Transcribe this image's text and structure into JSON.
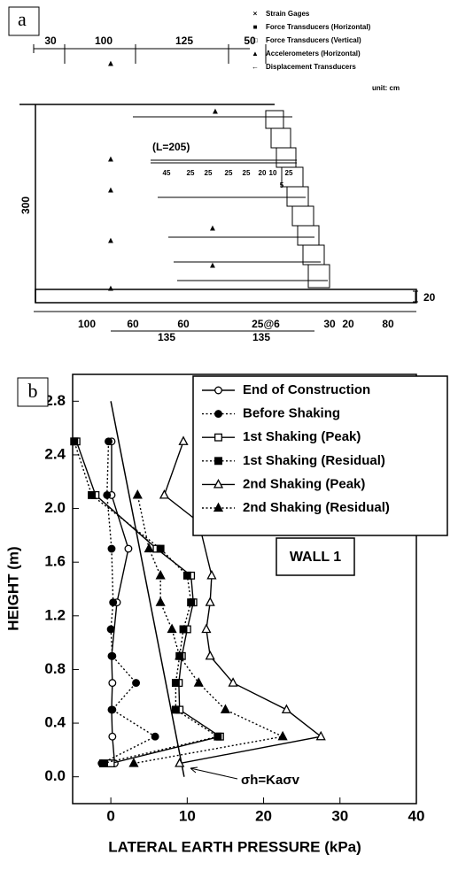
{
  "panel_a": {
    "label": "a",
    "legend": [
      "Strain Gages",
      "Force Transducers (Horizontal)",
      "Force Transducers (Vertical)",
      "Accelerometers (Horizontal)",
      "Displacement Transducers"
    ],
    "unit": "unit: cm",
    "top_dims": [
      "30",
      "100",
      "125",
      "50"
    ],
    "height": "300",
    "length": "(L=205)",
    "spacing": [
      "45",
      "25",
      "25",
      "25",
      "25",
      "20",
      "10",
      "25",
      "5"
    ],
    "base": "20",
    "bottom_dims": [
      "100",
      "60",
      "60",
      "25@6",
      "30",
      "20",
      "80"
    ],
    "lower_dims": [
      "135",
      "135"
    ]
  },
  "chart_data": {
    "type": "line",
    "label": "b",
    "x_label": "LATERAL EARTH PRESSURE (kPa)",
    "y_label": "HEIGHT (m)",
    "xlim": [
      -5,
      40
    ],
    "ylim": [
      -0.2,
      3.0
    ],
    "xticks": [
      0,
      10,
      20,
      30,
      40
    ],
    "yticks": [
      {
        "value": 0,
        "label": "0.0"
      },
      {
        "value": 0.4,
        "label": "0.4"
      },
      {
        "value": 0.8,
        "label": "0.8"
      },
      {
        "value": 1.2,
        "label": "1.2"
      },
      {
        "value": 1.6,
        "label": "1.6"
      },
      {
        "value": 2.0,
        "label": "2.0"
      },
      {
        "value": 2.4,
        "label": "2.4"
      },
      {
        "value": 2.8,
        "label": "2.8"
      }
    ],
    "series": [
      {
        "name": "End of Construction",
        "color": "#000000",
        "marker": "circle-open",
        "dash": "solid",
        "x": [
          0.5,
          0.2,
          0.1,
          0.2,
          0.1,
          0.8,
          2.3,
          0.1,
          0.1
        ],
        "y": [
          0.1,
          0.3,
          0.5,
          0.7,
          0.9,
          1.3,
          1.7,
          2.1,
          2.5
        ]
      },
      {
        "name": "Before Shaking",
        "color": "#000000",
        "marker": "circle-filled",
        "dash": "dotted",
        "x": [
          -1.2,
          5.8,
          0.2,
          3.3,
          0.2,
          0.0,
          0.3,
          0.1,
          -0.5,
          -0.3
        ],
        "y": [
          0.1,
          0.3,
          0.5,
          0.7,
          0.9,
          1.1,
          1.3,
          1.7,
          2.1,
          2.5
        ]
      },
      {
        "name": "1st Shaking (Peak)",
        "color": "#000000",
        "marker": "square-open",
        "dash": "solid",
        "x": [
          0.0,
          14.3,
          9.0,
          8.9,
          9.3,
          10.0,
          10.8,
          10.5,
          6.0,
          -2.0,
          -4.5
        ],
        "y": [
          0.1,
          0.3,
          0.5,
          0.7,
          0.9,
          1.1,
          1.3,
          1.5,
          1.7,
          2.1,
          2.5
        ]
      },
      {
        "name": "1st Shaking (Residual)",
        "color": "#000000",
        "marker": "square-filled",
        "dash": "dotted",
        "x": [
          -1.0,
          14.0,
          8.5,
          8.5,
          9.0,
          9.5,
          10.5,
          10.0,
          6.5,
          -2.5,
          -4.8
        ],
        "y": [
          0.1,
          0.3,
          0.5,
          0.7,
          0.9,
          1.1,
          1.3,
          1.5,
          1.7,
          2.1,
          2.5
        ]
      },
      {
        "name": "2nd Shaking (Peak)",
        "color": "#000000",
        "marker": "triangle-open",
        "dash": "solid",
        "x": [
          9.0,
          27.5,
          23.0,
          16.0,
          13.0,
          12.5,
          13.0,
          13.2,
          11.5,
          7.0,
          9.5
        ],
        "y": [
          0.1,
          0.3,
          0.5,
          0.7,
          0.9,
          1.1,
          1.3,
          1.5,
          1.9,
          2.1,
          2.5
        ]
      },
      {
        "name": "2nd Shaking (Residual)",
        "color": "#000000",
        "marker": "triangle-filled",
        "dash": "dotted",
        "x": [
          3.0,
          22.5,
          15.0,
          11.5,
          9.0,
          8.0,
          6.5,
          6.5,
          5.0,
          3.5
        ],
        "y": [
          0.1,
          0.3,
          0.5,
          0.7,
          0.9,
          1.1,
          1.3,
          1.5,
          1.7,
          2.1
        ]
      }
    ],
    "reference_line": {
      "x": [
        0,
        9.6
      ],
      "y": [
        2.8,
        0.0
      ]
    },
    "annotation": "σh=Kaσv",
    "box_label": "WALL 1"
  }
}
